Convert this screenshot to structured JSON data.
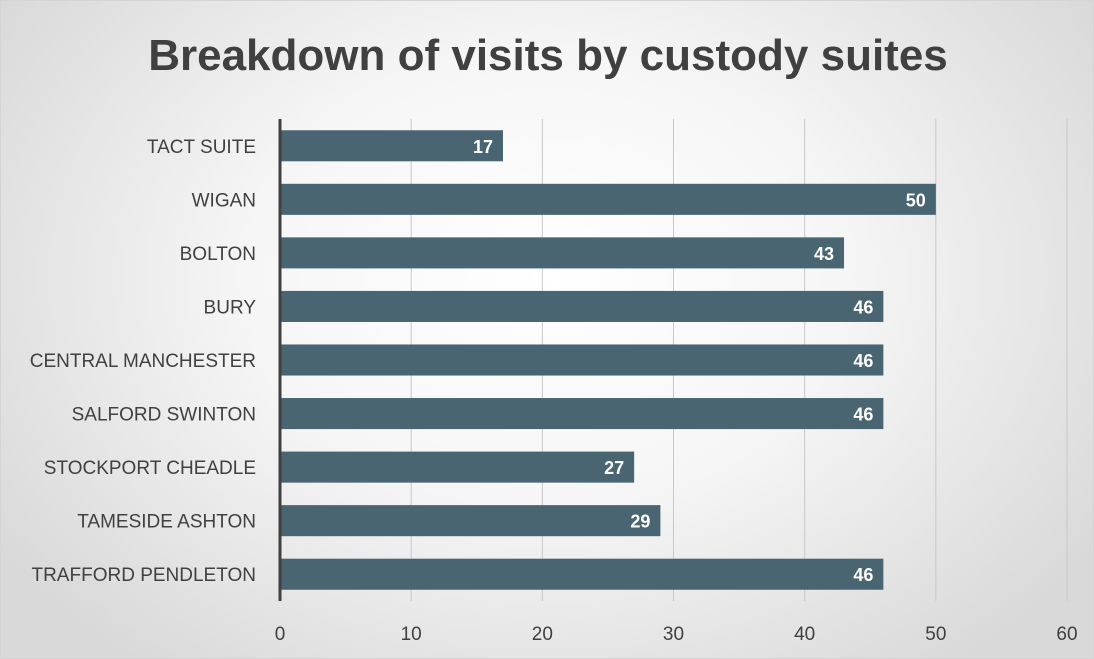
{
  "chart_data": {
    "type": "bar",
    "orientation": "horizontal",
    "title": "Breakdown of visits by custody suites",
    "categories": [
      "TACT SUITE",
      "WIGAN",
      "BOLTON",
      "BURY",
      "CENTRAL MANCHESTER",
      "SALFORD SWINTON",
      "STOCKPORT CHEADLE",
      "TAMESIDE ASHTON",
      "TRAFFORD PENDLETON"
    ],
    "values": [
      17,
      50,
      43,
      46,
      46,
      46,
      27,
      29,
      46
    ],
    "xlim": [
      0,
      60
    ],
    "xticks": [
      0,
      10,
      20,
      30,
      40,
      50,
      60
    ],
    "grid": true,
    "data_labels": true,
    "legend": "none",
    "colors": {
      "bar": "#4a6572",
      "axis": "#404040",
      "grid": "#c8c8c8",
      "text": "#404040",
      "data_label": "#ffffff"
    }
  }
}
